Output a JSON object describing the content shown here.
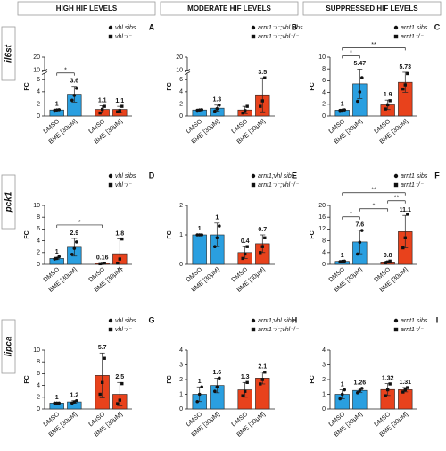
{
  "columns": [
    "HIGH HIF LEVELS",
    "MODERATE HIF LEVELS",
    "SUPPRESSED HIF LEVELS"
  ],
  "rows": [
    "il6st",
    "pck1",
    "lipca"
  ],
  "chart_data": [
    {
      "type": "bar",
      "panel": "A",
      "ylabel": "FC",
      "categories": [
        "DMSO",
        "BME [30μM]",
        "DMSO",
        "BME [30μM]"
      ],
      "colors": [
        "#2a9fe0",
        "#2a9fe0",
        "#e8421c",
        "#e8421c"
      ],
      "values": [
        1,
        3.6,
        1.1,
        1.1
      ],
      "errors": [
        0.05,
        1.3,
        0.6,
        0.5
      ],
      "points": [
        [
          0.95,
          1,
          1.05
        ],
        [
          2.6,
          3.4,
          4.6
        ],
        [
          0.5,
          1.1,
          1.6
        ],
        [
          0.7,
          0.9,
          1.6
        ]
      ],
      "ylim": [
        0,
        20
      ],
      "ybreak": [
        7,
        10
      ],
      "yticks": [
        0,
        2,
        4,
        6,
        10,
        20
      ],
      "legend": [
        {
          "name": "vhl sibs",
          "marker": "circle"
        },
        {
          "name": "vhl⁻/⁻",
          "marker": "square"
        }
      ],
      "brackets": [
        {
          "from": 0,
          "to": 1,
          "label": "*"
        }
      ]
    },
    {
      "type": "bar",
      "panel": "B",
      "ylabel": "FC",
      "categories": [
        "DMSO",
        "BME [30μM]",
        "DMSO",
        "BME [30μM]"
      ],
      "colors": [
        "#2a9fe0",
        "#2a9fe0",
        "#e8421c",
        "#e8421c"
      ],
      "values": [
        1,
        1.3,
        1,
        3.5
      ],
      "value_labels": [
        null,
        "1.3",
        null,
        "3.5"
      ],
      "errors": [
        0.05,
        0.5,
        0.6,
        2.8
      ],
      "points": [
        [
          0.95,
          1,
          1.05
        ],
        [
          0.8,
          1.2,
          1.8
        ],
        [
          0.5,
          0.9,
          1.6
        ],
        [
          1.6,
          2.5,
          6.3
        ]
      ],
      "ylim": [
        0,
        20
      ],
      "ybreak": [
        7,
        10
      ],
      "yticks": [
        0,
        2,
        4,
        6,
        10,
        20
      ],
      "legend": [
        {
          "name": "arnt1⁻/⁻;vhl sibs",
          "marker": "circle"
        },
        {
          "name": "arnt1⁻/⁻;vhl⁻/⁻",
          "marker": "square"
        }
      ],
      "brackets": []
    },
    {
      "type": "bar",
      "panel": "C",
      "ylabel": "FC",
      "categories": [
        "DMSO",
        "BME [30μM]",
        "DMSO",
        "BME [30μM]"
      ],
      "colors": [
        "#2a9fe0",
        "#2a9fe0",
        "#e8421c",
        "#e8421c"
      ],
      "values": [
        1,
        5.47,
        1.9,
        5.73
      ],
      "errors": [
        0.1,
        2.5,
        0.8,
        1.7
      ],
      "points": [
        [
          0.95,
          1,
          1.05
        ],
        [
          2.5,
          4.1,
          6.5
        ],
        [
          1.2,
          1.9,
          2.6
        ],
        [
          4.6,
          5.3,
          7.2
        ]
      ],
      "ylim": [
        0,
        10
      ],
      "yticks": [
        0,
        2,
        4,
        6,
        8,
        10
      ],
      "legend": [
        {
          "name": "arnt1 sibs",
          "marker": "circle"
        },
        {
          "name": "arnt1⁻/⁻",
          "marker": "square"
        }
      ],
      "brackets": [
        {
          "from": 0,
          "to": 1,
          "label": "*"
        },
        {
          "from": 0,
          "to": 3,
          "label": "**"
        }
      ]
    },
    {
      "type": "bar",
      "panel": "D",
      "ylabel": "FC",
      "categories": [
        "DMSO",
        "BME [30μM]",
        "DMSO",
        "BME [30μM]"
      ],
      "colors": [
        "#2a9fe0",
        "#2a9fe0",
        "#e8421c",
        "#e8421c"
      ],
      "values": [
        1,
        2.9,
        0.16,
        1.8
      ],
      "errors": [
        0.2,
        1.5,
        0.05,
        2.5
      ],
      "points": [
        [
          0.9,
          1,
          1.3
        ],
        [
          1.7,
          2.7,
          3.8
        ],
        [
          0.1,
          0.15,
          0.2
        ],
        [
          0.2,
          0.9,
          4.3
        ]
      ],
      "ylim": [
        0,
        10
      ],
      "yticks": [
        0,
        2,
        4,
        6,
        8,
        10
      ],
      "legend": [
        {
          "name": "vhl sibs",
          "marker": "circle"
        },
        {
          "name": "vhl⁻/⁻",
          "marker": "square"
        }
      ],
      "brackets": [
        {
          "from": 0,
          "to": 2,
          "label": "*"
        }
      ]
    },
    {
      "type": "bar",
      "panel": "E",
      "ylabel": "FC",
      "categories": [
        "DMSO",
        "BME [30μM]",
        "DMSO",
        "BME [30μM]"
      ],
      "colors": [
        "#2a9fe0",
        "#2a9fe0",
        "#e8421c",
        "#e8421c"
      ],
      "values": [
        1,
        1,
        0.4,
        0.7
      ],
      "errors": [
        0.02,
        0.4,
        0.2,
        0.3
      ],
      "points": [
        [
          1,
          1,
          1
        ],
        [
          0.6,
          0.9,
          1.3
        ],
        [
          0.2,
          0.35,
          0.6
        ],
        [
          0.4,
          0.6,
          0.9
        ]
      ],
      "ylim": [
        0,
        2
      ],
      "yticks": [
        0,
        1,
        2
      ],
      "legend": [
        {
          "name": "arnt1;vhl sibs",
          "marker": "circle"
        },
        {
          "name": "arnt1⁻/⁻;vhl⁻/⁻",
          "marker": "square"
        }
      ],
      "brackets": []
    },
    {
      "type": "bar",
      "panel": "F",
      "ylabel": "FC",
      "categories": [
        "DMSO",
        "BME [30μM]",
        "DMSO",
        "BME [30μM]"
      ],
      "colors": [
        "#2a9fe0",
        "#2a9fe0",
        "#e8421c",
        "#e8421c"
      ],
      "values": [
        1,
        7.6,
        0.8,
        11.1
      ],
      "errors": [
        0.1,
        4,
        0.3,
        5.5
      ],
      "points": [
        [
          0.9,
          1,
          1.1
        ],
        [
          3.5,
          7.5,
          11.5
        ],
        [
          0.5,
          0.8,
          1.1
        ],
        [
          5.6,
          9,
          17
        ]
      ],
      "ylim": [
        0,
        20
      ],
      "yticks": [
        0,
        4,
        8,
        12,
        16,
        20
      ],
      "legend": [
        {
          "name": "arnt1 sibs",
          "marker": "circle"
        },
        {
          "name": "arnt1⁻/⁻",
          "marker": "square"
        }
      ],
      "brackets": [
        {
          "from": 0,
          "to": 1,
          "label": "*"
        },
        {
          "from": 1,
          "to": 2,
          "label": "*"
        },
        {
          "from": 2,
          "to": 3,
          "label": "**"
        },
        {
          "from": 0,
          "to": 3,
          "label": "**"
        }
      ]
    },
    {
      "type": "bar",
      "panel": "G",
      "ylabel": "FC",
      "categories": [
        "DMSO",
        "BME [30μM]",
        "DMSO",
        "BME [30μM]"
      ],
      "colors": [
        "#2a9fe0",
        "#2a9fe0",
        "#e8421c",
        "#e8421c"
      ],
      "values": [
        1,
        1.2,
        5.7,
        2.5
      ],
      "errors": [
        0.05,
        0.2,
        3.8,
        2
      ],
      "points": [
        [
          1,
          1,
          1
        ],
        [
          1,
          1.2,
          1.4
        ],
        [
          2.5,
          4.5,
          8.6
        ],
        [
          0.9,
          1.5,
          4.3
        ]
      ],
      "ylim": [
        0,
        10
      ],
      "yticks": [
        0,
        2,
        4,
        6,
        8,
        10
      ],
      "legend": [
        {
          "name": "vhl sibs",
          "marker": "circle"
        },
        {
          "name": "vhl⁻/⁻",
          "marker": "square"
        }
      ],
      "brackets": []
    },
    {
      "type": "bar",
      "panel": "H",
      "ylabel": "FC",
      "categories": [
        "DMSO",
        "BME [30μM]",
        "DMSO",
        "BME [30μM]"
      ],
      "colors": [
        "#2a9fe0",
        "#2a9fe0",
        "#e8421c",
        "#e8421c"
      ],
      "values": [
        1,
        1.6,
        1.3,
        2.1
      ],
      "errors": [
        0.5,
        0.5,
        0.5,
        0.4
      ],
      "points": [
        [
          0.5,
          1,
          1.5
        ],
        [
          1.2,
          1.5,
          2.1
        ],
        [
          0.9,
          1.2,
          1.8
        ],
        [
          1.7,
          2,
          2.5
        ]
      ],
      "ylim": [
        0,
        4
      ],
      "yticks": [
        0,
        1,
        2,
        3,
        4
      ],
      "legend": [
        {
          "name": "arnt1;vhl sibs",
          "marker": "circle"
        },
        {
          "name": "arnt1⁻/⁻;vhl⁻/⁻",
          "marker": "square"
        }
      ],
      "brackets": []
    },
    {
      "type": "bar",
      "panel": "I",
      "ylabel": "FC",
      "categories": [
        "DMSO",
        "BME [30μM]",
        "DMSO",
        "BME [30μM]"
      ],
      "colors": [
        "#2a9fe0",
        "#2a9fe0",
        "#e8421c",
        "#e8421c"
      ],
      "values": [
        1,
        1.26,
        1.32,
        1.31
      ],
      "errors": [
        0.3,
        0.15,
        0.4,
        0.15
      ],
      "points": [
        [
          0.7,
          1,
          1.3
        ],
        [
          1.1,
          1.25,
          1.4
        ],
        [
          0.9,
          1.3,
          1.7
        ],
        [
          1.15,
          1.3,
          1.45
        ]
      ],
      "ylim": [
        0,
        4
      ],
      "yticks": [
        0,
        1,
        2,
        3,
        4
      ],
      "legend": [
        {
          "name": "arnt1 sibs",
          "marker": "circle"
        },
        {
          "name": "arnt1⁻/⁻",
          "marker": "square"
        }
      ],
      "brackets": []
    }
  ]
}
